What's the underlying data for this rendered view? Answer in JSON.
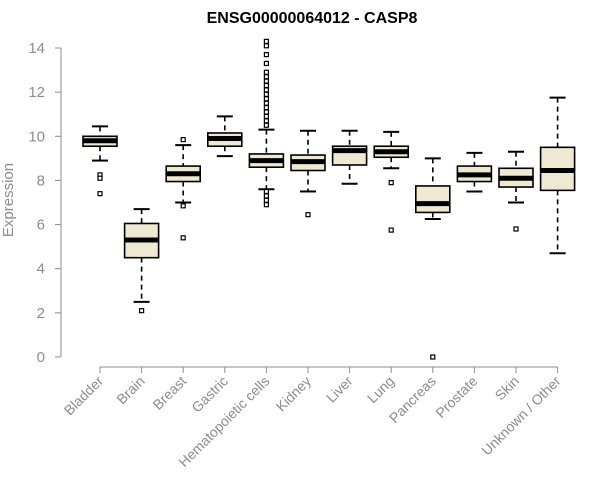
{
  "chart_data": {
    "type": "boxplot",
    "title": "ENSG00000064012 - CASP8",
    "xlabel": "",
    "ylabel": "Expression",
    "ylim": [
      0,
      14
    ],
    "yticks": [
      0,
      2,
      4,
      6,
      8,
      10,
      12,
      14
    ],
    "grid": false,
    "box_fill": "#efe9d3",
    "box_stroke": "#000000",
    "axis_color": "#8c8c8c",
    "categories": [
      "Bladder",
      "Brain",
      "Breast",
      "Gastric",
      "Hematopoietic cells",
      "Kidney",
      "Liver",
      "Lung",
      "Pancreas",
      "Prostate",
      "Skin",
      "Unknown / Other"
    ],
    "boxes": [
      {
        "min": 8.9,
        "q1": 9.55,
        "median": 9.8,
        "q3": 10.0,
        "max": 10.45,
        "outliers": [
          8.25,
          8.1,
          7.4
        ]
      },
      {
        "min": 2.5,
        "q1": 4.5,
        "median": 5.3,
        "q3": 6.05,
        "max": 6.7,
        "outliers": [
          2.1
        ]
      },
      {
        "min": 7.0,
        "q1": 7.95,
        "median": 8.3,
        "q3": 8.65,
        "max": 9.6,
        "outliers": [
          9.85,
          6.85,
          5.4
        ]
      },
      {
        "min": 9.1,
        "q1": 9.55,
        "median": 9.9,
        "q3": 10.15,
        "max": 10.9,
        "outliers": []
      },
      {
        "min": 7.6,
        "q1": 8.6,
        "median": 8.9,
        "q3": 9.2,
        "max": 10.3,
        "outliers": [
          14.3,
          14.1,
          13.7,
          13.3,
          12.9,
          12.7,
          12.5,
          12.3,
          12.1,
          11.9,
          11.7,
          11.5,
          11.3,
          11.1,
          10.9,
          10.7,
          10.5,
          7.5,
          7.3,
          7.1,
          6.9
        ]
      },
      {
        "min": 7.5,
        "q1": 8.45,
        "median": 8.85,
        "q3": 9.15,
        "max": 10.25,
        "outliers": [
          6.45
        ]
      },
      {
        "min": 7.85,
        "q1": 8.7,
        "median": 9.35,
        "q3": 9.55,
        "max": 10.25,
        "outliers": []
      },
      {
        "min": 8.55,
        "q1": 9.05,
        "median": 9.3,
        "q3": 9.55,
        "max": 10.2,
        "outliers": [
          7.9,
          5.75
        ]
      },
      {
        "min": 6.25,
        "q1": 6.55,
        "median": 6.95,
        "q3": 7.75,
        "max": 9.0,
        "outliers": [
          0.0
        ]
      },
      {
        "min": 7.5,
        "q1": 7.95,
        "median": 8.25,
        "q3": 8.65,
        "max": 9.25,
        "outliers": []
      },
      {
        "min": 7.0,
        "q1": 7.7,
        "median": 8.1,
        "q3": 8.55,
        "max": 9.3,
        "outliers": [
          5.8
        ]
      },
      {
        "min": 4.7,
        "q1": 7.55,
        "median": 8.45,
        "q3": 9.5,
        "max": 11.75,
        "outliers": []
      }
    ]
  }
}
